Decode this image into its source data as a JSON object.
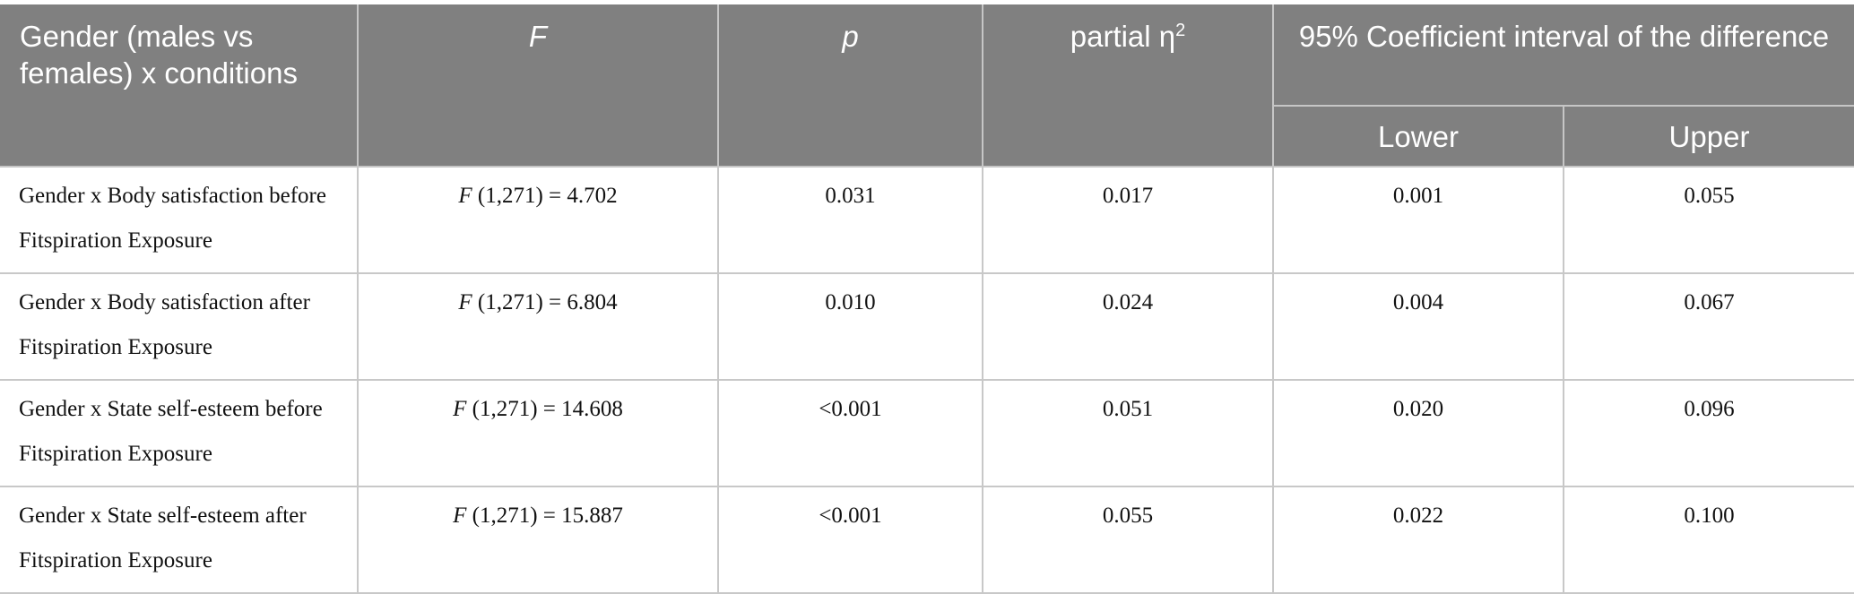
{
  "header": {
    "col1": "Gender (males vs females) x conditions",
    "col2": "F",
    "col3": "p",
    "col4_main": "partial η",
    "col4_sup": "2",
    "ci_group": "95% Coefficient interval of the difference",
    "ci_lower": "Lower",
    "ci_upper": "Upper"
  },
  "rows": [
    {
      "condition": "Gender x Body satisfaction before Fitspiration Exposure",
      "f_symbol": "F",
      "f_stat": " (1,271) = 4.702",
      "p": "0.031",
      "eta": "0.017",
      "lower": "0.001",
      "upper": "0.055"
    },
    {
      "condition": "Gender x Body satisfaction after Fitspiration Exposure",
      "f_symbol": "F",
      "f_stat": " (1,271) = 6.804",
      "p": "0.010",
      "eta": "0.024",
      "lower": "0.004",
      "upper": "0.067"
    },
    {
      "condition": "Gender x State self-esteem before Fitspiration Exposure",
      "f_symbol": "F",
      "f_stat": " (1,271) = 14.608",
      "p": "<0.001",
      "eta": "0.051",
      "lower": "0.020",
      "upper": "0.096"
    },
    {
      "condition": "Gender x State self-esteem after Fitspiration Exposure",
      "f_symbol": "F",
      "f_stat": " (1,271) = 15.887",
      "p": "<0.001",
      "eta": "0.055",
      "lower": "0.022",
      "upper": "0.100"
    }
  ],
  "colors": {
    "header_bg": "#808080",
    "header_text": "#ffffff",
    "grid_line": "#c8c8c8",
    "body_text": "#111111"
  }
}
